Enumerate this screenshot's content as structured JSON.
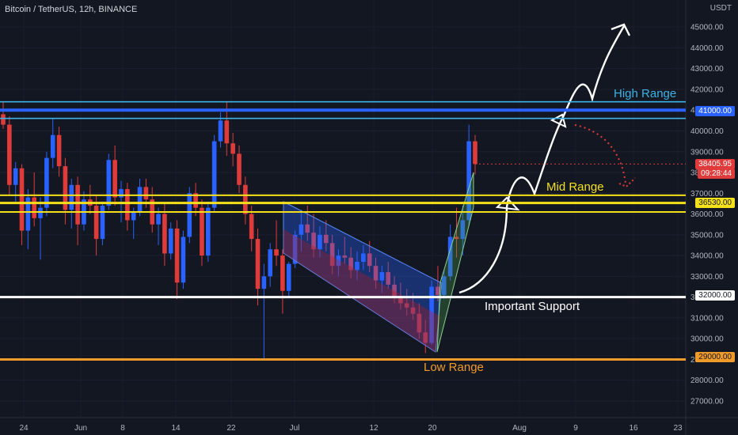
{
  "header": {
    "title": "Bitcoin / TetherUS, 12h, BINANCE"
  },
  "axis_currency": "USDT",
  "price_tags": {
    "current": {
      "price": "38405.95",
      "countdown": "09:28:44",
      "color": "#e03b3b"
    },
    "high": {
      "price": "41000.00",
      "color": "#2962ff"
    },
    "mid": {
      "price": "36530.00",
      "color": "#f5e11a"
    },
    "support": {
      "price": "32000.00",
      "color": "#ffffff"
    },
    "low": {
      "price": "29000.00",
      "color": "#f09a2a"
    }
  },
  "annotations": {
    "high_range": "High Range",
    "mid_range": "Mid Range",
    "important_support": "Important Support",
    "low_range": "Low Range"
  },
  "chart_data": {
    "type": "candlestick",
    "symbol": "Bitcoin / TetherUS",
    "interval": "12h",
    "exchange": "BINANCE",
    "y_ticks": [
      27000,
      28000,
      29000,
      30000,
      31000,
      32000,
      33000,
      34000,
      35000,
      36000,
      37000,
      38000,
      39000,
      40000,
      41000,
      42000,
      43000,
      44000,
      45000
    ],
    "ylim": [
      26200,
      46300
    ],
    "x_ticks": [
      "24",
      "Jun",
      "8",
      "14",
      "22",
      "Jul",
      "12",
      "20",
      "Aug",
      "9",
      "16",
      "23"
    ],
    "candles_ohlc": [
      [
        40800,
        41400,
        40100,
        40300
      ],
      [
        40300,
        40700,
        36900,
        37400
      ],
      [
        37400,
        38500,
        36600,
        38200
      ],
      [
        38200,
        38400,
        34500,
        35200
      ],
      [
        35200,
        37200,
        34300,
        36800
      ],
      [
        36800,
        38000,
        35400,
        35800
      ],
      [
        35800,
        36800,
        33800,
        36300
      ],
      [
        36300,
        39000,
        35900,
        38700
      ],
      [
        38700,
        40600,
        38200,
        39800
      ],
      [
        39800,
        40200,
        37800,
        38300
      ],
      [
        38300,
        38700,
        35500,
        36200
      ],
      [
        36200,
        37700,
        35300,
        37400
      ],
      [
        37400,
        37800,
        34500,
        35500
      ],
      [
        35500,
        37100,
        35200,
        36700
      ],
      [
        36700,
        37400,
        36000,
        36400
      ],
      [
        36400,
        36900,
        34000,
        34800
      ],
      [
        34800,
        36600,
        34500,
        36400
      ],
      [
        36400,
        38900,
        36200,
        38600
      ],
      [
        38600,
        39300,
        36400,
        36800
      ],
      [
        36800,
        37600,
        35600,
        37200
      ],
      [
        37200,
        37500,
        35200,
        35700
      ],
      [
        35700,
        36300,
        34800,
        36100
      ],
      [
        36100,
        37700,
        35900,
        37300
      ],
      [
        37300,
        37700,
        36300,
        36700
      ],
      [
        36700,
        37300,
        35100,
        35500
      ],
      [
        35500,
        36300,
        34500,
        36000
      ],
      [
        36000,
        36500,
        33500,
        34100
      ],
      [
        34100,
        35600,
        33800,
        35300
      ],
      [
        35300,
        35700,
        31900,
        32700
      ],
      [
        32700,
        35200,
        32400,
        34900
      ],
      [
        34900,
        37300,
        34600,
        37000
      ],
      [
        37000,
        37500,
        35900,
        36300
      ],
      [
        36300,
        36700,
        33500,
        34000
      ],
      [
        34000,
        36600,
        33700,
        36300
      ],
      [
        36300,
        39800,
        36100,
        39500
      ],
      [
        39500,
        40900,
        39200,
        40500
      ],
      [
        40500,
        41400,
        38800,
        39400
      ],
      [
        39400,
        39900,
        38300,
        38900
      ],
      [
        38900,
        39300,
        37000,
        37400
      ],
      [
        37400,
        37800,
        35500,
        36000
      ],
      [
        36000,
        36400,
        34200,
        34800
      ],
      [
        34800,
        35300,
        31600,
        32400
      ],
      [
        32400,
        33600,
        29000,
        33000
      ],
      [
        33000,
        34600,
        32500,
        34300
      ],
      [
        34300,
        35700,
        33500,
        34000
      ],
      [
        34000,
        34300,
        31200,
        32300
      ],
      [
        32300,
        33700,
        32000,
        33600
      ],
      [
        33600,
        35200,
        33400,
        35000
      ],
      [
        35000,
        36200,
        34200,
        35500
      ],
      [
        35500,
        36400,
        34700,
        35100
      ],
      [
        35100,
        36000,
        33900,
        34300
      ],
      [
        34300,
        35400,
        33900,
        35000
      ],
      [
        35000,
        35700,
        34200,
        34600
      ],
      [
        34600,
        35000,
        33100,
        33500
      ],
      [
        33500,
        34300,
        33000,
        34000
      ],
      [
        34000,
        34900,
        33600,
        33900
      ],
      [
        33900,
        34400,
        32900,
        33300
      ],
      [
        33300,
        34200,
        32800,
        33700
      ],
      [
        33700,
        34500,
        33300,
        34100
      ],
      [
        34100,
        34700,
        33200,
        33500
      ],
      [
        33500,
        33900,
        32400,
        32800
      ],
      [
        32800,
        33500,
        32200,
        33200
      ],
      [
        33200,
        33700,
        32400,
        32600
      ],
      [
        32600,
        33000,
        31700,
        32000
      ],
      [
        32000,
        32700,
        31400,
        31700
      ],
      [
        31700,
        32400,
        31100,
        31500
      ],
      [
        31500,
        32200,
        30900,
        31200
      ],
      [
        31200,
        31700,
        30000,
        30300
      ],
      [
        30300,
        30900,
        29300,
        29800
      ],
      [
        29800,
        32800,
        29700,
        32500
      ],
      [
        32500,
        33500,
        31800,
        32100
      ],
      [
        32100,
        33300,
        31900,
        33000
      ],
      [
        33000,
        35500,
        32800,
        34900
      ],
      [
        34900,
        36300,
        33900,
        34800
      ],
      [
        34800,
        36400,
        34000,
        35700
      ],
      [
        35700,
        40300,
        35400,
        39500
      ],
      [
        39500,
        39800,
        37900,
        38406
      ]
    ]
  }
}
